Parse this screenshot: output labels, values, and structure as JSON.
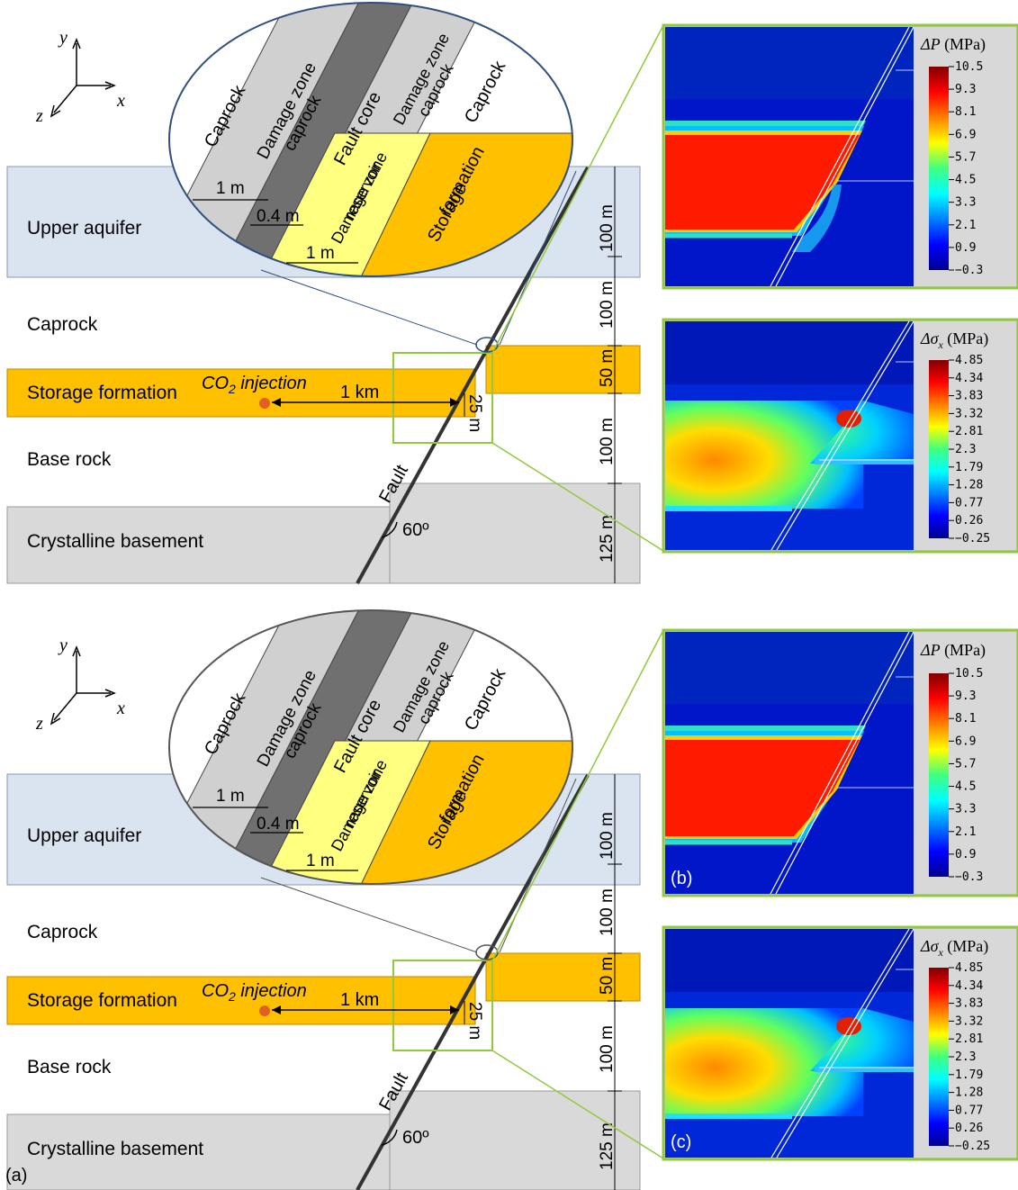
{
  "panel_labels": {
    "a": "(a)",
    "b": "(b)",
    "c": "(c)"
  },
  "axes": {
    "x": "x",
    "y": "y",
    "z": "z"
  },
  "layers": {
    "upper_aquifer": "Upper aquifer",
    "caprock": "Caprock",
    "storage_formation": "Storage formation",
    "base_rock": "Base rock",
    "crystalline_basement": "Crystalline basement"
  },
  "injection": {
    "label_prefix": "CO",
    "label_sub": "2",
    "label_suffix": " injection",
    "distance": "1 km"
  },
  "fault": {
    "label": "Fault",
    "angle": "60º"
  },
  "thickness": {
    "upper_aquifer": "100 m",
    "caprock": "100 m",
    "storage": "50 m",
    "base": "100 m",
    "basement": "125 m",
    "offset": "25 m"
  },
  "zoom": {
    "caprock_left": "Caprock",
    "damage_caprock_left": [
      "Damage zone",
      "caprock"
    ],
    "fault_core": "Fault core",
    "damage_caprock_right": [
      "Damage zone",
      "caprock"
    ],
    "caprock_right": "Caprock",
    "damage_reservoir": [
      "Damage zone",
      "reservoir"
    ],
    "storage": [
      "Storage",
      "formation"
    ],
    "dim_damage": "1 m",
    "dim_core": "0.4 m",
    "dim_reservoir": "1 m"
  },
  "colorbars": {
    "dp": {
      "title_sym": "ΔP",
      "title_unit": " (MPa)",
      "ticks": [
        "10.5",
        "9.3",
        "8.1",
        "6.9",
        "5.7",
        "4.5",
        "3.3",
        "2.1",
        "0.9",
        "−0.3"
      ]
    },
    "dsx": {
      "title_sym": "Δσ",
      "title_subscript": "x",
      "title_unit": " (MPa)",
      "ticks": [
        "4.85",
        "4.34",
        "3.83",
        "3.32",
        "2.81",
        "2.3",
        "1.79",
        "1.28",
        "0.77",
        "0.26",
        "−0.25"
      ]
    }
  },
  "colors": {
    "upper_aquifer": "#dae3f0",
    "storage": "#ffc000",
    "basement": "#d9d9d9",
    "damage_caprock": "#d0d0d0",
    "fault_core": "#707070",
    "damage_reservoir": "#ffff80",
    "green_frame": "#92c83e",
    "ellipse_top": "#2f4f7f",
    "ellipse_bottom": "#555555"
  }
}
